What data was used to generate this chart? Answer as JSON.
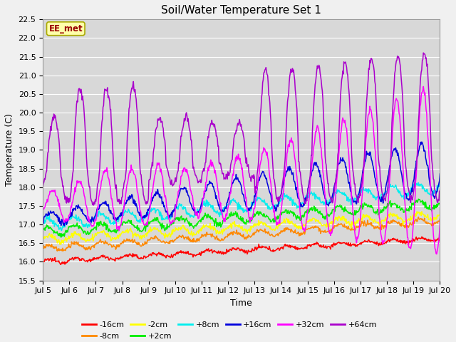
{
  "title": "Soil/Water Temperature Set 1",
  "ylabel": "Temperature (C)",
  "xlabel": "Time",
  "annotation": "EE_met",
  "ylim": [
    15.5,
    22.5
  ],
  "n_days": 15,
  "xtick_labels": [
    "Jul 5",
    "Jul 6",
    "Jul 7",
    "Jul 8",
    "Jul 9",
    "Jul 10",
    "Jul 11",
    "Jul 12",
    "Jul 13",
    "Jul 14",
    "Jul 15",
    "Jul 16",
    "Jul 17",
    "Jul 18",
    "Jul 19",
    "Jul 20"
  ],
  "series_colors": {
    "-16cm": "#ff0000",
    "-8cm": "#ff8800",
    "-2cm": "#ffff00",
    "+2cm": "#00ee00",
    "+8cm": "#00eeee",
    "+16cm": "#0000dd",
    "+32cm": "#ff00ff",
    "+64cm": "#aa00cc"
  },
  "plot_bg": "#d8d8d8",
  "fig_bg": "#f0f0f0",
  "grid_color": "#ffffff",
  "title_fontsize": 11,
  "legend_fontsize": 8,
  "tick_fontsize": 8,
  "label_fontsize": 9
}
